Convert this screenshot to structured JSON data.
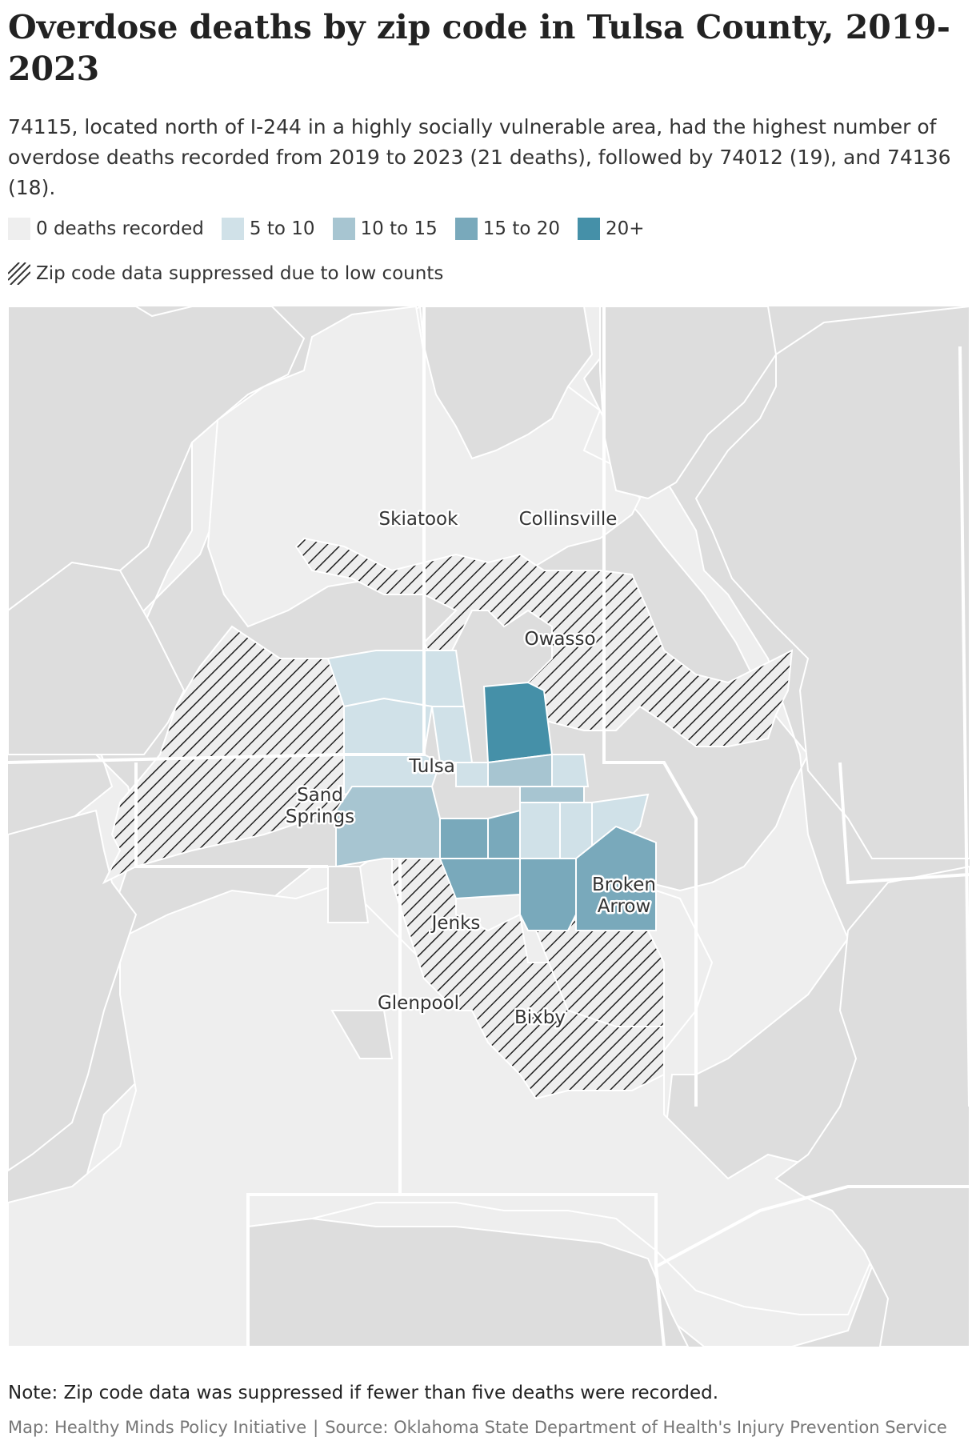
{
  "title": "Overdose deaths by zip code in Tulsa County, 2019-2023",
  "subtitle": "74115, located north of I-244 in a highly socially vulnerable area, had the highest number of overdose deaths recorded from 2019 to 2023 (21 deaths), followed by 74012 (19), and 74136 (18).",
  "legend": {
    "bins": [
      {
        "label": "0 deaths recorded",
        "color": "#eeeeee"
      },
      {
        "label": "5 to 10",
        "color": "#d0e1e8"
      },
      {
        "label": "10 to 15",
        "color": "#a7c5d1"
      },
      {
        "label": "15 to 20",
        "color": "#79a9bb"
      },
      {
        "label": "20+",
        "color": "#4590a8"
      }
    ],
    "suppressed_label": "Zip code data suppressed due to low counts"
  },
  "map": {
    "cities": [
      "Skiatook",
      "Collinsville",
      "Owasso",
      "Tulsa",
      "Sand Springs",
      "Broken Arrow",
      "Jenks",
      "Glenpool",
      "Bixby"
    ]
  },
  "note": "Note: Zip code data was suppressed if fewer than five deaths were recorded.",
  "source": {
    "credit": "Map: Healthy Minds Policy Initiative",
    "separator": "|",
    "text": "Source: Oklahoma State Department of Health's Injury Prevention Service"
  },
  "colors": {
    "outside": "#dddddd",
    "county": "#eeeeee",
    "hatch": "#222222",
    "border": "#ffffff"
  }
}
